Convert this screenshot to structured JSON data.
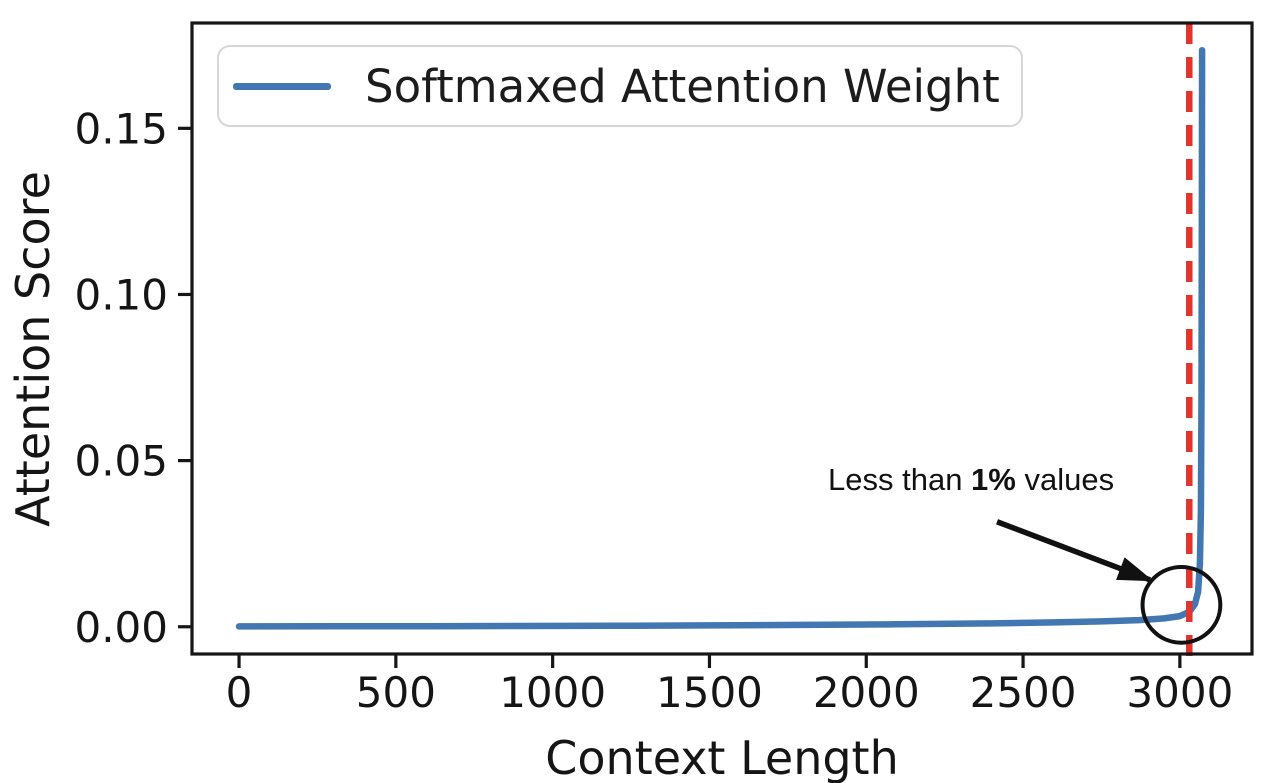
{
  "chart_data": {
    "type": "line",
    "title": "",
    "xlabel": "Context Length",
    "ylabel": "Attention Score",
    "x_ticks": [
      0,
      500,
      1000,
      1500,
      2000,
      2500,
      3000
    ],
    "x_tick_labels": [
      "0",
      "500",
      "1000",
      "1500",
      "2000",
      "2500",
      "3000"
    ],
    "y_ticks": [
      0,
      0.05,
      0.1,
      0.15
    ],
    "y_tick_labels": [
      "0.00",
      "0.05",
      "0.10",
      "0.15"
    ],
    "xlim": [
      -150,
      3230
    ],
    "ylim": [
      -0.0082,
      0.1817
    ],
    "grid": false,
    "legend_position": "upper left",
    "frame_color": "#161616",
    "series": [
      {
        "name": "Softmaxed Attention Weight",
        "color": "#4377b2",
        "x": [
          0,
          300,
          600,
          900,
          1200,
          1500,
          1800,
          2100,
          2400,
          2600,
          2750,
          2870,
          2950,
          3000,
          3030,
          3048,
          3058,
          3064,
          3067,
          3069,
          3070,
          3071
        ],
        "y": [
          0.0001,
          0.00013,
          0.00017,
          0.00022,
          0.0003,
          0.0004,
          0.00055,
          0.00075,
          0.001,
          0.0013,
          0.0016,
          0.002,
          0.0025,
          0.0032,
          0.0045,
          0.0068,
          0.0105,
          0.019,
          0.035,
          0.07,
          0.115,
          0.1735
        ]
      }
    ],
    "vline": {
      "x": 3030,
      "color": "#e3332a",
      "style": "dashed"
    },
    "annotation": {
      "prefix": "Less than ",
      "bold": "1%",
      "suffix": " values",
      "arrow": {
        "x1": 2417,
        "y1": 0.0316,
        "x2": 2905,
        "y2": 0.0141,
        "color": "#111111"
      },
      "circle": {
        "x": 3005,
        "y": 0.0066,
        "rx": 124,
        "ry": 0.0114,
        "color": "#111111"
      }
    }
  }
}
